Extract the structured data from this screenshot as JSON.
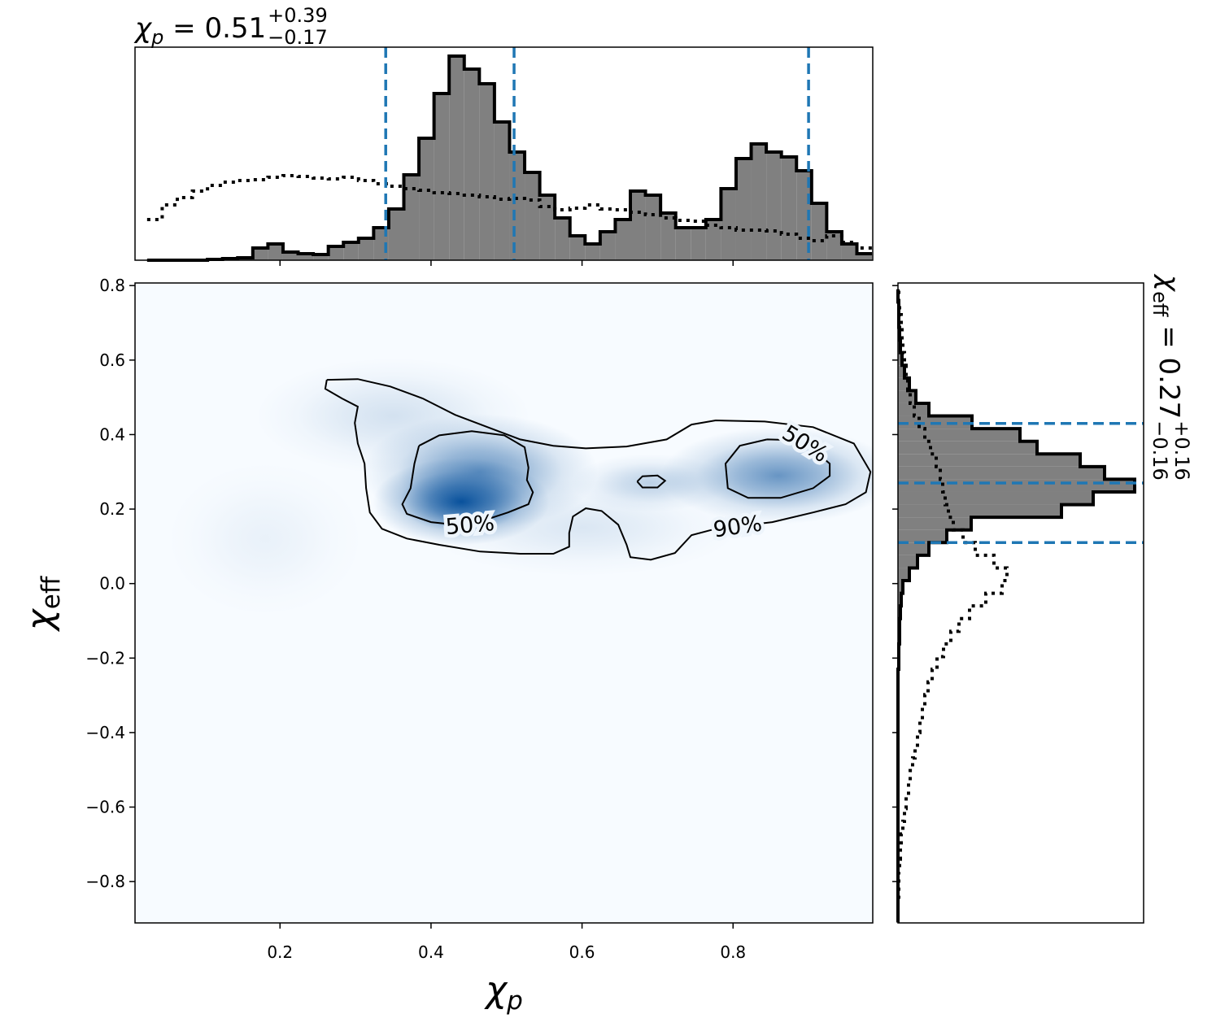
{
  "chart_data": {
    "type": "corner",
    "title": [
      "χ",
      "p",
      " = 0.51",
      "+0.39",
      "−0.17"
    ],
    "right_title": [
      "χ",
      "eff",
      " = 0.27",
      "+0.16",
      "−0.16"
    ],
    "xlabel": [
      "χ",
      "p"
    ],
    "ylabel": [
      "χ",
      "eff"
    ],
    "xlim": [
      0.008,
      0.985
    ],
    "ylim": [
      -0.911,
      0.807
    ],
    "xticks": [
      0.2,
      0.4,
      0.6,
      0.8
    ],
    "yticks": [
      {
        "value": -0.8,
        "label": "−0.8"
      },
      {
        "value": -0.6,
        "label": "−0.6"
      },
      {
        "value": -0.4,
        "label": "−0.4"
      },
      {
        "value": -0.2,
        "label": "−0.2"
      },
      {
        "value": 0,
        "label": "0.0"
      },
      0.2,
      0.4,
      0.6,
      0.8
    ],
    "density": {
      "color": "#08519c",
      "background": "#f7fbff",
      "components": [
        {
          "x": 0.44,
          "y": 0.22,
          "sx": 0.045,
          "sy": 0.045,
          "weight": 1.0
        },
        {
          "x": 0.465,
          "y": 0.3,
          "sx": 0.06,
          "sy": 0.06,
          "weight": 0.6
        },
        {
          "x": 0.86,
          "y": 0.29,
          "sx": 0.06,
          "sy": 0.05,
          "weight": 0.6
        },
        {
          "x": 0.69,
          "y": 0.27,
          "sx": 0.04,
          "sy": 0.03,
          "weight": 0.25
        },
        {
          "x": 0.35,
          "y": 0.45,
          "sx": 0.07,
          "sy": 0.06,
          "weight": 0.15
        },
        {
          "x": 0.6,
          "y": 0.15,
          "sx": 0.08,
          "sy": 0.05,
          "weight": 0.12
        },
        {
          "x": 0.18,
          "y": 0.12,
          "sx": 0.05,
          "sy": 0.08,
          "weight": 0.06
        }
      ]
    },
    "contours": [
      {
        "label": "90%",
        "paths": [
          [
            [
              0.262,
              0.547
            ],
            [
              0.303,
              0.549
            ],
            [
              0.346,
              0.529
            ],
            [
              0.389,
              0.497
            ],
            [
              0.432,
              0.453
            ],
            [
              0.475,
              0.42
            ],
            [
              0.518,
              0.387
            ],
            [
              0.562,
              0.37
            ],
            [
              0.605,
              0.363
            ],
            [
              0.659,
              0.368
            ],
            [
              0.712,
              0.387
            ],
            [
              0.745,
              0.427
            ],
            [
              0.777,
              0.438
            ],
            [
              0.842,
              0.435
            ],
            [
              0.906,
              0.42
            ],
            [
              0.96,
              0.376
            ],
            [
              0.982,
              0.3
            ],
            [
              0.976,
              0.245
            ],
            [
              0.949,
              0.213
            ],
            [
              0.906,
              0.191
            ],
            [
              0.852,
              0.165
            ],
            [
              0.777,
              0.147
            ],
            [
              0.745,
              0.13
            ],
            [
              0.723,
              0.082
            ],
            [
              0.691,
              0.064
            ],
            [
              0.664,
              0.071
            ],
            [
              0.659,
              0.104
            ],
            [
              0.648,
              0.158
            ],
            [
              0.626,
              0.195
            ],
            [
              0.605,
              0.202
            ],
            [
              0.588,
              0.18
            ],
            [
              0.583,
              0.136
            ],
            [
              0.583,
              0.099
            ],
            [
              0.562,
              0.08
            ],
            [
              0.518,
              0.08
            ],
            [
              0.465,
              0.086
            ],
            [
              0.411,
              0.104
            ],
            [
              0.368,
              0.121
            ],
            [
              0.335,
              0.147
            ],
            [
              0.319,
              0.191
            ],
            [
              0.314,
              0.256
            ],
            [
              0.312,
              0.322
            ],
            [
              0.303,
              0.376
            ],
            [
              0.299,
              0.431
            ],
            [
              0.303,
              0.475
            ],
            [
              0.282,
              0.497
            ],
            [
              0.26,
              0.523
            ],
            [
              0.262,
              0.547
            ]
          ]
        ]
      },
      {
        "label": "50%",
        "paths": [
          [
            [
              0.384,
              0.37
            ],
            [
              0.411,
              0.398
            ],
            [
              0.454,
              0.409
            ],
            [
              0.497,
              0.398
            ],
            [
              0.524,
              0.366
            ],
            [
              0.529,
              0.311
            ],
            [
              0.527,
              0.278
            ],
            [
              0.535,
              0.245
            ],
            [
              0.529,
              0.213
            ],
            [
              0.502,
              0.191
            ],
            [
              0.475,
              0.173
            ],
            [
              0.432,
              0.158
            ],
            [
              0.4,
              0.165
            ],
            [
              0.368,
              0.187
            ],
            [
              0.362,
              0.213
            ],
            [
              0.373,
              0.256
            ],
            [
              0.378,
              0.322
            ],
            [
              0.384,
              0.37
            ]
          ],
          [
            [
              0.845,
              0.387
            ],
            [
              0.809,
              0.37
            ],
            [
              0.79,
              0.322
            ],
            [
              0.793,
              0.256
            ],
            [
              0.82,
              0.23
            ],
            [
              0.863,
              0.23
            ],
            [
              0.906,
              0.256
            ],
            [
              0.928,
              0.289
            ],
            [
              0.928,
              0.322
            ],
            [
              0.906,
              0.36
            ],
            [
              0.88,
              0.385
            ],
            [
              0.845,
              0.387
            ]
          ],
          [
            [
              0.673,
              0.274
            ],
            [
              0.68,
              0.288
            ],
            [
              0.7,
              0.29
            ],
            [
              0.71,
              0.276
            ],
            [
              0.7,
              0.258
            ],
            [
              0.68,
              0.258
            ],
            [
              0.673,
              0.274
            ]
          ]
        ]
      }
    ],
    "top_hist": {
      "bins": [
        0.024,
        0.044,
        0.064,
        0.084,
        0.104,
        0.124,
        0.144,
        0.164,
        0.184,
        0.204,
        0.224,
        0.244,
        0.264,
        0.284,
        0.304,
        0.324,
        0.344,
        0.364,
        0.384,
        0.404,
        0.424,
        0.444,
        0.464,
        0.484,
        0.504,
        0.524,
        0.544,
        0.564,
        0.584,
        0.604,
        0.624,
        0.644,
        0.664,
        0.684,
        0.704,
        0.724,
        0.744,
        0.764,
        0.784,
        0.804,
        0.824,
        0.844,
        0.864,
        0.884,
        0.904,
        0.924,
        0.944,
        0.964,
        0.984
      ],
      "values": [
        0,
        0,
        0,
        0,
        0.01,
        0.02,
        0.03,
        0.15,
        0.2,
        0.1,
        0.08,
        0.07,
        0.17,
        0.22,
        0.27,
        0.4,
        0.63,
        1.05,
        1.5,
        2.05,
        2.51,
        2.35,
        2.17,
        1.7,
        1.33,
        1.08,
        0.8,
        0.52,
        0.3,
        0.2,
        0.35,
        0.5,
        0.85,
        0.8,
        0.58,
        0.4,
        0.4,
        0.5,
        0.88,
        1.25,
        1.43,
        1.33,
        1.27,
        1.1,
        0.7,
        0.35,
        0.2,
        0.08
      ],
      "prior_values": [
        0.5,
        0.68,
        0.77,
        0.85,
        0.92,
        0.96,
        0.98,
        0.99,
        1.02,
        1.04,
        1.03,
        1.01,
        1.0,
        1.02,
        0.98,
        0.94,
        0.91,
        0.88,
        0.86,
        0.83,
        0.82,
        0.8,
        0.78,
        0.75,
        0.76,
        0.74,
        0.66,
        0.62,
        0.64,
        0.68,
        0.63,
        0.62,
        0.59,
        0.56,
        0.52,
        0.49,
        0.48,
        0.43,
        0.4,
        0.37,
        0.37,
        0.36,
        0.32,
        0.27,
        0.24,
        0.3,
        0.22,
        0.15
      ],
      "ylim": [
        0,
        2.62
      ],
      "color": "#808080",
      "quantiles": [
        0.34,
        0.51,
        0.9
      ]
    },
    "right_hist": {
      "bins": [
        -0.91,
        -0.876,
        -0.842,
        -0.808,
        -0.774,
        -0.74,
        -0.706,
        -0.672,
        -0.638,
        -0.604,
        -0.57,
        -0.536,
        -0.502,
        -0.468,
        -0.434,
        -0.4,
        -0.366,
        -0.332,
        -0.298,
        -0.264,
        -0.23,
        -0.196,
        -0.162,
        -0.128,
        -0.094,
        -0.06,
        -0.026,
        0.008,
        0.042,
        0.076,
        0.11,
        0.144,
        0.178,
        0.212,
        0.246,
        0.28,
        0.314,
        0.348,
        0.382,
        0.416,
        0.45,
        0.484,
        0.518,
        0.552,
        0.586,
        0.62,
        0.654,
        0.688,
        0.722,
        0.756,
        0.79
      ],
      "values": [
        0,
        0,
        0,
        0,
        0,
        0,
        0,
        0,
        0,
        0,
        0,
        0,
        0,
        0,
        0,
        0,
        0,
        0,
        0,
        0,
        0.01,
        0.01,
        0.02,
        0.02,
        0.03,
        0.04,
        0.06,
        0.14,
        0.24,
        0.38,
        0.6,
        0.9,
        2.01,
        2.4,
        2.91,
        2.54,
        2.24,
        1.71,
        1.5,
        0.91,
        0.38,
        0.22,
        0.14,
        0.08,
        0.05,
        0.03,
        0.02,
        0.01,
        0.01,
        0
      ],
      "prior_values": [
        0,
        0,
        0.01,
        0.01,
        0.02,
        0.03,
        0.04,
        0.06,
        0.08,
        0.1,
        0.13,
        0.15,
        0.18,
        0.21,
        0.24,
        0.27,
        0.3,
        0.33,
        0.37,
        0.42,
        0.48,
        0.56,
        0.65,
        0.75,
        0.88,
        1.08,
        1.28,
        1.34,
        1.18,
        0.95,
        0.8,
        0.68,
        0.62,
        0.58,
        0.55,
        0.52,
        0.47,
        0.4,
        0.33,
        0.26,
        0.2,
        0.15,
        0.12,
        0.1,
        0.08,
        0.06,
        0.05,
        0.04,
        0.02,
        0.01
      ],
      "xlim": [
        0,
        3.02
      ],
      "color": "#808080",
      "quantiles": [
        0.11,
        0.27,
        0.43
      ]
    },
    "quantile_color": "#1f77b4"
  }
}
